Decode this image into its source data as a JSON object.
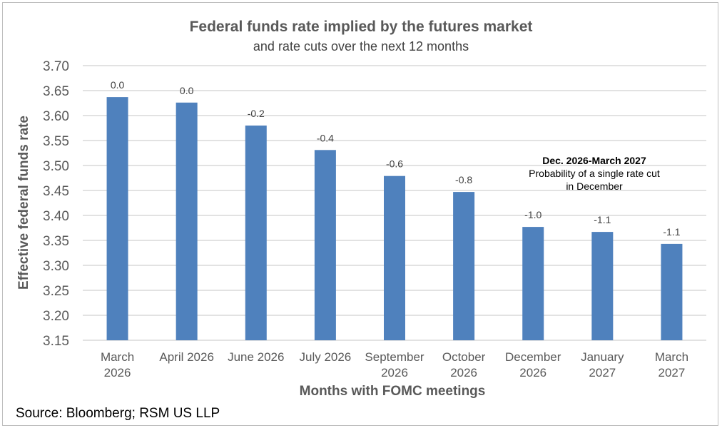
{
  "chart_data": {
    "type": "bar",
    "title": "Federal funds rate implied by the futures market",
    "subtitle": "and rate cuts over the next 12 months",
    "xlabel": "Months with FOMC meetings",
    "ylabel": "Effective federal funds rate",
    "ylim": [
      3.15,
      3.7
    ],
    "yticks": [
      "3.70",
      "3.65",
      "3.60",
      "3.55",
      "3.50",
      "3.45",
      "3.40",
      "3.35",
      "3.30",
      "3.25",
      "3.20",
      "3.15"
    ],
    "grid": true,
    "categories": [
      [
        "March",
        "2026"
      ],
      [
        "April 2026"
      ],
      [
        "June 2026"
      ],
      [
        "July 2026"
      ],
      [
        "September",
        "2026"
      ],
      [
        "October",
        "2026"
      ],
      [
        "December",
        "2026"
      ],
      [
        "January",
        "2027"
      ],
      [
        "March",
        "2027"
      ]
    ],
    "values": [
      3.637,
      3.626,
      3.58,
      3.531,
      3.479,
      3.447,
      3.377,
      3.367,
      3.343
    ],
    "data_labels": [
      "0.0",
      "0.0",
      "-0.2",
      "-0.4",
      "-0.6",
      "-0.8",
      "-1.0",
      "-1.1",
      "-1.1"
    ],
    "bar_color": "#4f81bd",
    "annotation": {
      "title": "Dec. 2026-March 2027",
      "text": "Probability of a single rate cut in December"
    }
  },
  "source": "Source: Bloomberg; RSM US LLP"
}
